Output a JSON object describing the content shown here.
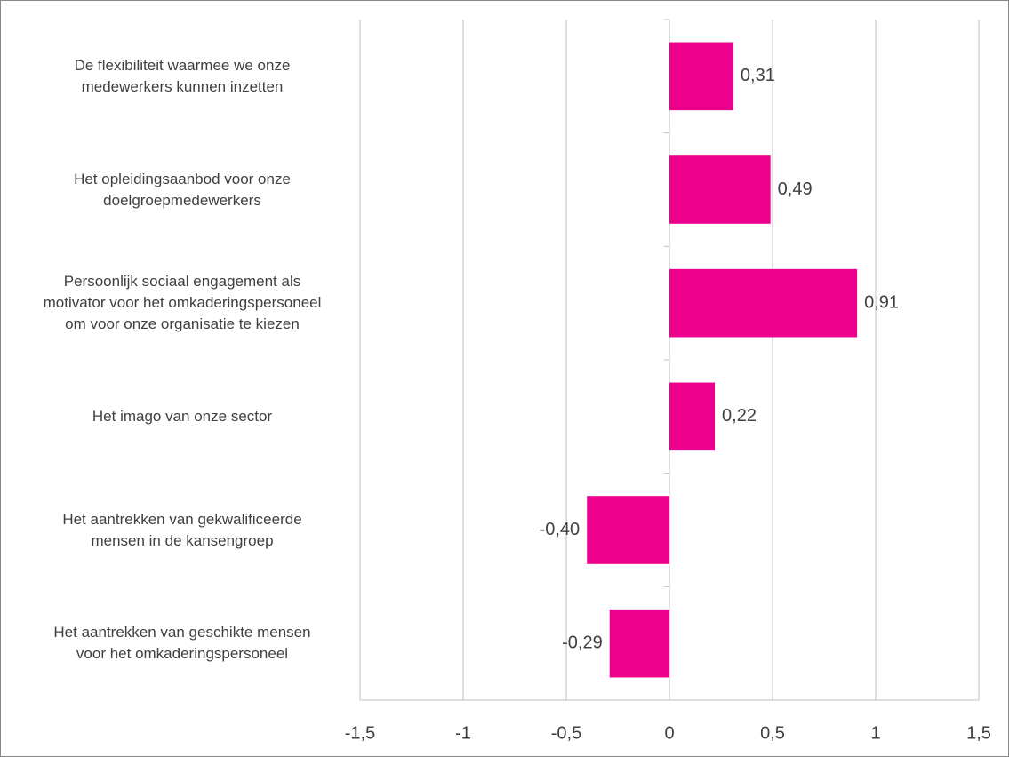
{
  "chart_data": {
    "type": "bar",
    "orientation": "horizontal",
    "categories": [
      "De flexibiliteit waarmee we onze\nmedewerkers kunnen inzetten",
      "Het opleidingsaanbod voor onze\ndoelgroepmedewerkers",
      "Persoonlijk sociaal engagement als\nmotivator voor het omkaderingspersoneel\nom voor onze organisatie te kiezen",
      "Het imago van onze sector",
      "Het aantrekken van gekwalificeerde\nmensen in de kansengroep",
      "Het aantrekken van geschikte mensen\nvoor het omkaderingspersoneel"
    ],
    "values": [
      0.31,
      0.49,
      0.91,
      0.22,
      -0.4,
      -0.29
    ],
    "value_labels": [
      "0,31",
      "0,49",
      "0,91",
      "0,22",
      "-0,40",
      "-0,29"
    ],
    "color": "#ec008c",
    "xlim": [
      -1.5,
      1.5
    ],
    "xticks": [
      {
        "value": -1.5,
        "label": "-1,5"
      },
      -1,
      {
        "value": -0.5,
        "label": "-0,5"
      },
      0,
      {
        "value": 0.5,
        "label": "0,5"
      },
      1,
      {
        "value": 1.5,
        "label": "1,5"
      }
    ],
    "grid": true
  }
}
